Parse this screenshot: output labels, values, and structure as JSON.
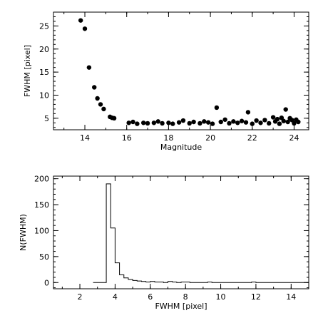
{
  "chart_data": [
    {
      "type": "scatter",
      "xlabel": "Magnitude",
      "ylabel": "FWHM [pixel]",
      "xlim": [
        12.5,
        24.7
      ],
      "ylim": [
        2.5,
        28
      ],
      "x_ticks": [
        14,
        16,
        18,
        20,
        22,
        24
      ],
      "y_ticks": [
        5,
        10,
        15,
        20,
        25
      ],
      "marker_color": "#000000",
      "points": [
        [
          13.8,
          26.2
        ],
        [
          14.0,
          24.4
        ],
        [
          14.2,
          16.0
        ],
        [
          14.45,
          11.7
        ],
        [
          14.6,
          9.3
        ],
        [
          14.75,
          8.0
        ],
        [
          14.9,
          7.0
        ],
        [
          15.2,
          5.3
        ],
        [
          15.3,
          5.1
        ],
        [
          15.4,
          5.0
        ],
        [
          16.1,
          4.0
        ],
        [
          16.3,
          4.2
        ],
        [
          16.5,
          3.8
        ],
        [
          16.8,
          4.0
        ],
        [
          17.0,
          3.9
        ],
        [
          17.3,
          4.0
        ],
        [
          17.5,
          4.3
        ],
        [
          17.7,
          3.9
        ],
        [
          18.0,
          4.0
        ],
        [
          18.2,
          3.8
        ],
        [
          18.5,
          4.1
        ],
        [
          18.7,
          4.5
        ],
        [
          19.0,
          3.9
        ],
        [
          19.2,
          4.2
        ],
        [
          19.5,
          3.9
        ],
        [
          19.7,
          4.3
        ],
        [
          19.9,
          4.1
        ],
        [
          20.1,
          3.8
        ],
        [
          20.3,
          7.3
        ],
        [
          20.5,
          4.2
        ],
        [
          20.7,
          4.7
        ],
        [
          20.9,
          3.9
        ],
        [
          21.1,
          4.3
        ],
        [
          21.3,
          4.0
        ],
        [
          21.5,
          4.4
        ],
        [
          21.7,
          4.1
        ],
        [
          21.8,
          6.3
        ],
        [
          22.0,
          3.8
        ],
        [
          22.2,
          4.5
        ],
        [
          22.4,
          4.0
        ],
        [
          22.6,
          4.6
        ],
        [
          22.8,
          3.9
        ],
        [
          23.0,
          5.2
        ],
        [
          23.1,
          4.3
        ],
        [
          23.2,
          4.8
        ],
        [
          23.3,
          3.8
        ],
        [
          23.4,
          5.1
        ],
        [
          23.5,
          4.4
        ],
        [
          23.6,
          6.9
        ],
        [
          23.7,
          4.2
        ],
        [
          23.8,
          5.0
        ],
        [
          23.9,
          4.6
        ],
        [
          24.0,
          3.9
        ],
        [
          24.1,
          4.7
        ],
        [
          24.2,
          4.2
        ]
      ]
    },
    {
      "type": "histogram",
      "xlabel": "FWHM [pixel]",
      "ylabel": "N(FWHM)",
      "xlim": [
        0.5,
        15
      ],
      "ylim": [
        -12,
        205
      ],
      "x_ticks": [
        2,
        4,
        6,
        8,
        10,
        12,
        14
      ],
      "y_ticks": [
        0,
        50,
        100,
        150,
        200
      ],
      "line_color": "#000000",
      "bin_edges": [
        2.75,
        3.0,
        3.25,
        3.5,
        3.75,
        4.0,
        4.25,
        4.5,
        4.75,
        5.0,
        5.25,
        5.5,
        5.75,
        6.0,
        6.25,
        6.5,
        6.75,
        7.0,
        7.25,
        7.5,
        7.75,
        8.0,
        8.25,
        8.5,
        8.75,
        9.0,
        9.25,
        9.5,
        9.75,
        10.0,
        10.25,
        10.5,
        10.75,
        11.0,
        11.25,
        11.5,
        11.75,
        12.0,
        12.25,
        12.5,
        12.75,
        13.0,
        13.25,
        13.5,
        13.75,
        14.0,
        14.25,
        14.5,
        14.75,
        15.0
      ],
      "counts": [
        0,
        0,
        0,
        190,
        105,
        38,
        15,
        9,
        6,
        4,
        3,
        2,
        1,
        2,
        1,
        1,
        0,
        2,
        1,
        0,
        1,
        1,
        0,
        0,
        0,
        0,
        1,
        0,
        0,
        0,
        0,
        0,
        0,
        0,
        0,
        0,
        1,
        0,
        0,
        0,
        0,
        0,
        0,
        0,
        0,
        0,
        0,
        0,
        0
      ]
    }
  ]
}
